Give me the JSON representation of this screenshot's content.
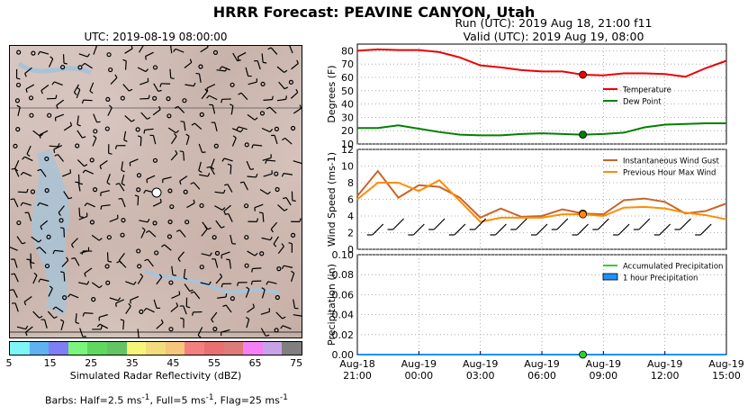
{
  "title": "HRRR Forecast: PEAVINE CANYON, Utah",
  "map": {
    "title": "UTC: 2019-08-19 08:00:00",
    "colorbar_label": "Simulated Radar Reflectivity (dBZ)",
    "colorbar_colors": [
      "#7ef5f7",
      "#5fb1f0",
      "#7f7ff3",
      "#7cf57c",
      "#60d860",
      "#63c463",
      "#f5f57a",
      "#f2dc7b",
      "#f5c67c",
      "#f47f7f",
      "#e87070",
      "#dc7b79",
      "#f57ff5",
      "#c8a2e6",
      "#7f7f7f"
    ],
    "colorbar_ticks": [
      "5",
      "15",
      "25",
      "35",
      "45",
      "55",
      "65",
      "75"
    ],
    "barbs_note_prefix": "Barbs: Half=2.5 ms",
    "barbs_note_mid1": ", Full=5 ms",
    "barbs_note_mid2": ", Flag=25 ms",
    "barbs_exp": "-1"
  },
  "run": {
    "line1": "Run (UTC): 2019 Aug 18, 21:00 f11",
    "line2": "Valid (UTC): 2019 Aug 19, 08:00"
  },
  "chart_data": [
    {
      "type": "line",
      "ylabel": "Degrees (F)",
      "ylim": [
        10,
        85
      ],
      "yticks": [
        10,
        20,
        30,
        40,
        50,
        60,
        70,
        80
      ],
      "grid": true,
      "legend": "right",
      "x": [
        0,
        1,
        2,
        3,
        4,
        5,
        6,
        7,
        8,
        9,
        10,
        11,
        12,
        13,
        14,
        15,
        16,
        17,
        18
      ],
      "series": [
        {
          "name": "Temperature",
          "color": "#ee0000",
          "values": [
            80,
            81,
            80.5,
            80.5,
            79,
            75,
            69,
            67.5,
            65.5,
            64.5,
            64.5,
            62,
            61.5,
            63,
            63,
            62.5,
            60.5,
            67,
            72.5
          ]
        },
        {
          "name": "Dew Point",
          "color": "#008000",
          "values": [
            22,
            22,
            24,
            21.5,
            19,
            17,
            16.5,
            16.5,
            17.5,
            18,
            17.5,
            17,
            17.5,
            18.5,
            22.5,
            24.5,
            25,
            25.5,
            25.5
          ]
        }
      ],
      "marker_index": 11
    },
    {
      "type": "line",
      "ylabel": "Wind Speed (ms-1)",
      "ylim": [
        0,
        12
      ],
      "yticks": [
        0,
        2,
        4,
        6,
        8,
        10,
        12
      ],
      "grid": true,
      "legend": "top-right",
      "x": [
        0,
        1,
        2,
        3,
        4,
        5,
        6,
        7,
        8,
        9,
        10,
        11,
        12,
        13,
        14,
        15,
        16,
        17,
        18
      ],
      "series": [
        {
          "name": "Instantaneous Wind Gust",
          "color": "#c86428",
          "values": [
            6.4,
            9.4,
            6.2,
            7.7,
            7.5,
            6.2,
            3.8,
            4.9,
            3.9,
            4.0,
            4.8,
            4.3,
            4.2,
            5.9,
            6.1,
            5.7,
            4.3,
            4.6,
            5.5
          ]
        },
        {
          "name": "Previous Hour Max Wind",
          "color": "#ff8c00",
          "values": [
            6.0,
            8.0,
            8.0,
            7.0,
            8.3,
            5.8,
            3.3,
            3.8,
            3.8,
            3.8,
            4.2,
            4.2,
            4.0,
            5.0,
            5.1,
            4.9,
            4.4,
            4.1,
            3.6
          ]
        }
      ],
      "marker_index": 11
    },
    {
      "type": "line",
      "ylabel": "Precipitation (in)",
      "ylim": [
        0,
        0.1
      ],
      "yticks": [
        "0.00",
        "0.02",
        "0.04",
        "0.06",
        "0.08",
        "0.10"
      ],
      "grid": true,
      "legend": "top-right",
      "x": [
        0,
        1,
        2,
        3,
        4,
        5,
        6,
        7,
        8,
        9,
        10,
        11,
        12,
        13,
        14,
        15,
        16,
        17,
        18
      ],
      "series": [
        {
          "name": "Accumulated Precipitation",
          "color": "#32cd32",
          "values": [
            0,
            0,
            0,
            0,
            0,
            0,
            0,
            0,
            0,
            0,
            0,
            0,
            0,
            0,
            0,
            0,
            0,
            0,
            0
          ]
        },
        {
          "name": "1 hour Precipitation",
          "color": "#1e90ff",
          "values": [
            0,
            0,
            0,
            0,
            0,
            0,
            0,
            0,
            0,
            0,
            0,
            0,
            0,
            0,
            0,
            0,
            0,
            0,
            0
          ]
        }
      ],
      "marker_index": 11,
      "xticks": [
        {
          "i": 0,
          "l1": "Aug-18",
          "l2": "21:00"
        },
        {
          "i": 3,
          "l1": "Aug-19",
          "l2": "00:00"
        },
        {
          "i": 6,
          "l1": "Aug-19",
          "l2": "03:00"
        },
        {
          "i": 9,
          "l1": "Aug-19",
          "l2": "06:00"
        },
        {
          "i": 12,
          "l1": "Aug-19",
          "l2": "09:00"
        },
        {
          "i": 15,
          "l1": "Aug-19",
          "l2": "12:00"
        },
        {
          "i": 18,
          "l1": "Aug-19",
          "l2": "15:00"
        }
      ]
    }
  ]
}
